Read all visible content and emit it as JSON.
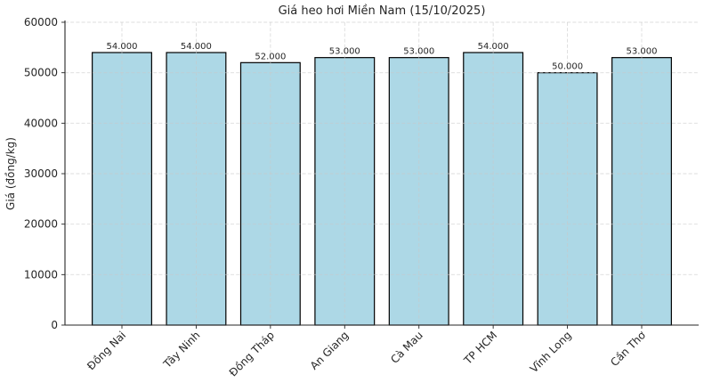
{
  "chart_data": {
    "type": "bar",
    "title": "Giá heo hơi Miền Nam (15/10/2025)",
    "xlabel": "",
    "ylabel": "Giá (đồng/kg)",
    "categories": [
      "Đồng Nai",
      "Tây Ninh",
      "Đồng Tháp",
      "An Giang",
      "Cà Mau",
      "TP HCM",
      "Vĩnh Long",
      "Cần Thơ"
    ],
    "values": [
      54000,
      54000,
      52000,
      53000,
      53000,
      54000,
      50000,
      53000
    ],
    "value_labels": [
      "54.000",
      "54.000",
      "52.000",
      "53.000",
      "53.000",
      "54.000",
      "50.000",
      "53.000"
    ],
    "ylim": [
      0,
      60000
    ],
    "yticks": [
      0,
      10000,
      20000,
      30000,
      40000,
      50000,
      60000
    ],
    "ytick_labels": [
      "0",
      "10000",
      "20000",
      "30000",
      "40000",
      "50000",
      "60000"
    ],
    "grid": true,
    "grid_style": "dashed",
    "legend": "none",
    "bar_color": "#ADD8E6",
    "bar_edge_color": "#000000",
    "grid_color": "#c9c9c9",
    "axis_color": "#262626",
    "text_color": "#262626",
    "background_color": "#ffffff"
  }
}
